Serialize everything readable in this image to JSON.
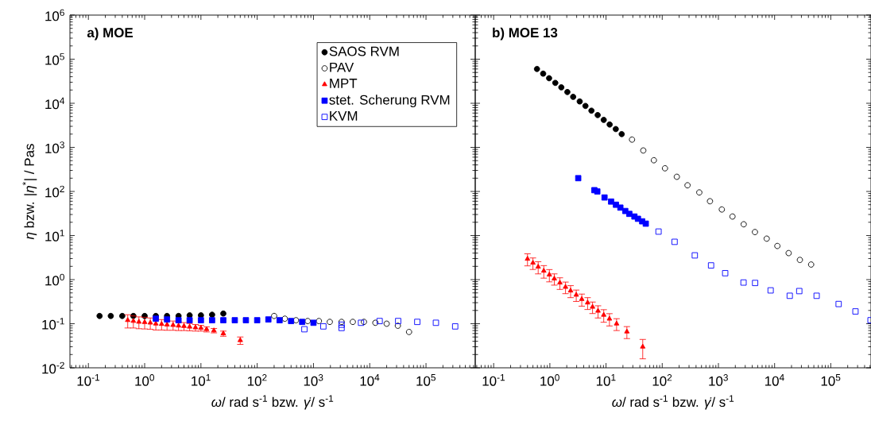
{
  "chart_data": [
    {
      "type": "scatter",
      "title": "a) MOE",
      "xlabel": "*ω*/ rad s$^{-1}$ bzw. *γ̇*/ s$^{-1}$",
      "ylabel": "*η* bzw. |*η*$^{*}$| / Pas",
      "log": "xy",
      "legend": "top right",
      "xlim": [
        0.047,
        750000
      ],
      "ylim": [
        0.01,
        1000000
      ],
      "xticks": [
        {
          "value": 0.1,
          "label": "10$^{-1}$"
        },
        {
          "value": 1,
          "label": "10$^{0}$"
        },
        {
          "value": 10,
          "label": "10$^{1}$"
        },
        {
          "value": 100,
          "label": "10$^{2}$"
        },
        {
          "value": 1000,
          "label": "10$^{3}$"
        },
        {
          "value": 10000,
          "label": "10$^{4}$"
        },
        {
          "value": 100000,
          "label": "10$^{5}$"
        }
      ],
      "yticks": [
        {
          "value": 0.01,
          "label": "10$^{-2}$"
        },
        {
          "value": 0.1,
          "label": "10$^{-1}$"
        },
        {
          "value": 1,
          "label": "10$^{0}$"
        },
        {
          "value": 10,
          "label": "10$^{1}$"
        },
        {
          "value": 100,
          "label": "10$^{2}$"
        },
        {
          "value": 1000,
          "label": "10$^{3}$"
        },
        {
          "value": 10000,
          "label": "10$^{4}$"
        },
        {
          "value": 100000,
          "label": "10$^{5}$"
        },
        {
          "value": 1000000,
          "label": "10$^{6}$"
        }
      ],
      "series": [
        {
          "name": "SAOS RVM",
          "color": "#000000",
          "marker": "circle",
          "x": [
            0.158,
            0.25,
            0.4,
            0.63,
            1,
            1.58,
            2.5,
            4,
            6.3,
            10,
            15.8,
            25
          ],
          "values": [
            0.15,
            0.15,
            0.15,
            0.15,
            0.15,
            0.15,
            0.15,
            0.15,
            0.155,
            0.155,
            0.16,
            0.17
          ]
        },
        {
          "name": "PAV",
          "color": "#000000",
          "marker": "circle-open",
          "x": [
            200,
            310,
            490,
            790,
            1250,
            1950,
            3160,
            5000,
            7900,
            12600,
            20000,
            31600,
            50000
          ],
          "values": [
            0.15,
            0.13,
            0.12,
            0.115,
            0.115,
            0.11,
            0.11,
            0.11,
            0.11,
            0.105,
            0.1,
            0.09,
            0.065
          ]
        },
        {
          "name": "MPT",
          "color": "#ff0000",
          "marker": "triangle",
          "x": [
            0.5,
            0.63,
            0.79,
            1,
            1.26,
            1.58,
            2,
            2.5,
            3.2,
            4,
            5,
            6.3,
            8,
            10,
            12.6,
            17,
            25,
            50
          ],
          "values": [
            0.12,
            0.115,
            0.11,
            0.108,
            0.105,
            0.1,
            0.098,
            0.095,
            0.093,
            0.09,
            0.088,
            0.085,
            0.082,
            0.08,
            0.075,
            0.07,
            0.06,
            0.042
          ],
          "errors": [
            0.04,
            0.035,
            0.033,
            0.032,
            0.03,
            0.028,
            0.026,
            0.024,
            0.022,
            0.02,
            0.018,
            0.016,
            0.014,
            0.012,
            0.01,
            0.008,
            0.008,
            0.008
          ]
        },
        {
          "name": "stet. Scherung RVM",
          "color": "#0000ff",
          "marker": "square",
          "x": [
            1.58,
            2.5,
            4,
            6.3,
            10,
            15.8,
            25,
            40,
            63,
            100,
            158,
            250,
            400,
            630,
            1000
          ],
          "values": [
            0.13,
            0.125,
            0.12,
            0.12,
            0.12,
            0.12,
            0.12,
            0.12,
            0.12,
            0.12,
            0.125,
            0.12,
            0.115,
            0.11,
            0.105
          ]
        },
        {
          "name": "KVM",
          "color": "#0000ff",
          "marker": "square-open",
          "x": [
            690,
            1500,
            3160,
            3160,
            7000,
            15000,
            32000,
            70000,
            150000,
            330000
          ],
          "values": [
            0.075,
            0.087,
            0.08,
            0.095,
            0.105,
            0.115,
            0.115,
            0.11,
            0.105,
            0.087
          ]
        }
      ]
    },
    {
      "type": "scatter",
      "title": "b) MOE 13",
      "xlabel": "*ω*/ rad s$^{-1}$ bzw. *γ̇*/ s$^{-1}$",
      "log": "xy",
      "tick_labels": "x",
      "xlim": [
        0.047,
        520000
      ],
      "ylim": [
        0.01,
        1000000
      ],
      "xticks": [
        {
          "value": 0.1,
          "label": "10$^{-1}$"
        },
        {
          "value": 1,
          "label": "10$^{0}$"
        },
        {
          "value": 10,
          "label": "10$^{1}$"
        },
        {
          "value": 100,
          "label": "10$^{2}$"
        },
        {
          "value": 1000,
          "label": "10$^{3}$"
        },
        {
          "value": 10000,
          "label": "10$^{4}$"
        },
        {
          "value": 100000,
          "label": "10$^{5}$"
        }
      ],
      "yticks": [
        0.01,
        0.1,
        1,
        10,
        100,
        1000,
        10000,
        100000,
        1000000
      ],
      "series": [
        {
          "color": "#000000",
          "marker": "circle",
          "x": [
            0.59,
            0.76,
            0.97,
            1.25,
            1.6,
            2.05,
            2.6,
            3.4,
            4.3,
            5.5,
            7.1,
            9.1,
            11.6,
            14.9,
            19
          ],
          "values": [
            60000,
            47000,
            37000,
            29000,
            23000,
            18000,
            14000,
            11000,
            8700,
            6800,
            5400,
            4200,
            3300,
            2600,
            2000
          ]
        },
        {
          "color": "#000000",
          "marker": "circle-open",
          "x": [
            29,
            46,
            71,
            112,
            182,
            282,
            457,
            708,
            1150,
            1780,
            2820,
            4470,
            7240,
            11200,
            17800,
            28200,
            44700
          ],
          "values": [
            1500,
            850,
            510,
            335,
            215,
            138,
            95,
            60,
            39,
            27,
            18,
            12,
            8.5,
            5.8,
            4,
            2.8,
            2.2
          ]
        },
        {
          "color": "#ff0000",
          "marker": "triangle",
          "x": [
            0.4,
            0.5,
            0.62,
            0.78,
            0.98,
            1.2,
            1.51,
            1.9,
            2.34,
            2.95,
            3.7,
            4.7,
            5.75,
            7.2,
            9.1,
            11.5,
            15.4,
            23.5,
            45
          ],
          "values": [
            2.95,
            2.4,
            1.95,
            1.58,
            1.29,
            1.05,
            0.85,
            0.68,
            0.56,
            0.45,
            0.36,
            0.3,
            0.24,
            0.195,
            0.158,
            0.129,
            0.1,
            0.066,
            0.03
          ],
          "errors": [
            0.9,
            0.7,
            0.6,
            0.5,
            0.4,
            0.3,
            0.25,
            0.2,
            0.17,
            0.13,
            0.11,
            0.09,
            0.07,
            0.06,
            0.05,
            0.04,
            0.03,
            0.02,
            0.014
          ]
        },
        {
          "color": "#0000ff",
          "marker": "square",
          "x": [
            3.2,
            6.2,
            7,
            9.4,
            12.3,
            15,
            18,
            22,
            26,
            32,
            37,
            44,
            51
          ],
          "values": [
            200,
            107,
            100,
            73,
            59,
            50,
            43,
            36,
            31,
            27,
            24,
            21,
            18.6
          ]
        },
        {
          "color": "#0000ff",
          "marker": "square-open",
          "x": [
            86,
            166,
            380,
            740,
            1320,
            2800,
            4500,
            8500,
            18600,
            27500,
            56000,
            138000,
            275000,
            510000
          ],
          "values": [
            12.3,
            7.2,
            3.55,
            2.1,
            1.4,
            0.86,
            0.84,
            0.57,
            0.43,
            0.55,
            0.43,
            0.28,
            0.19,
            0.12
          ]
        }
      ]
    }
  ]
}
